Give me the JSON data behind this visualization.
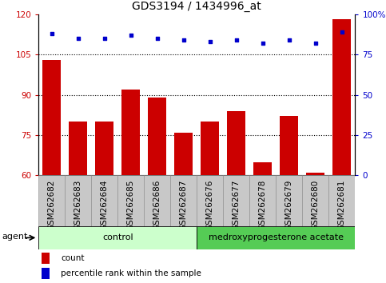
{
  "title": "GDS3194 / 1434996_at",
  "categories": [
    "GSM262682",
    "GSM262683",
    "GSM262684",
    "GSM262685",
    "GSM262686",
    "GSM262687",
    "GSM262676",
    "GSM262677",
    "GSM262678",
    "GSM262679",
    "GSM262680",
    "GSM262681"
  ],
  "bar_values": [
    103,
    80,
    80,
    92,
    89,
    76,
    80,
    84,
    65,
    82,
    61,
    118
  ],
  "percentile_values": [
    88,
    85,
    85,
    87,
    85,
    84,
    83,
    84,
    82,
    84,
    82,
    89
  ],
  "bar_color": "#cc0000",
  "dot_color": "#0000cc",
  "ylim_left": [
    60,
    120
  ],
  "ylim_right": [
    0,
    100
  ],
  "yticks_left": [
    60,
    75,
    90,
    105,
    120
  ],
  "yticks_right": [
    0,
    25,
    50,
    75,
    100
  ],
  "ytick_labels_right": [
    "0",
    "25",
    "50",
    "75",
    "100%"
  ],
  "grid_lines": [
    75,
    90,
    105
  ],
  "group1_label": "control",
  "group2_label": "medroxyprogesterone acetate",
  "group1_count": 6,
  "group2_count": 6,
  "agent_label": "agent",
  "legend_bar_label": "count",
  "legend_dot_label": "percentile rank within the sample",
  "background_color": "#ffffff",
  "col_bg_color": "#c8c8c8",
  "group1_bg": "#ccffcc",
  "group2_bg": "#55cc55",
  "title_fontsize": 10,
  "axis_fontsize": 7.5,
  "label_fontsize": 8,
  "bar_width": 0.7
}
